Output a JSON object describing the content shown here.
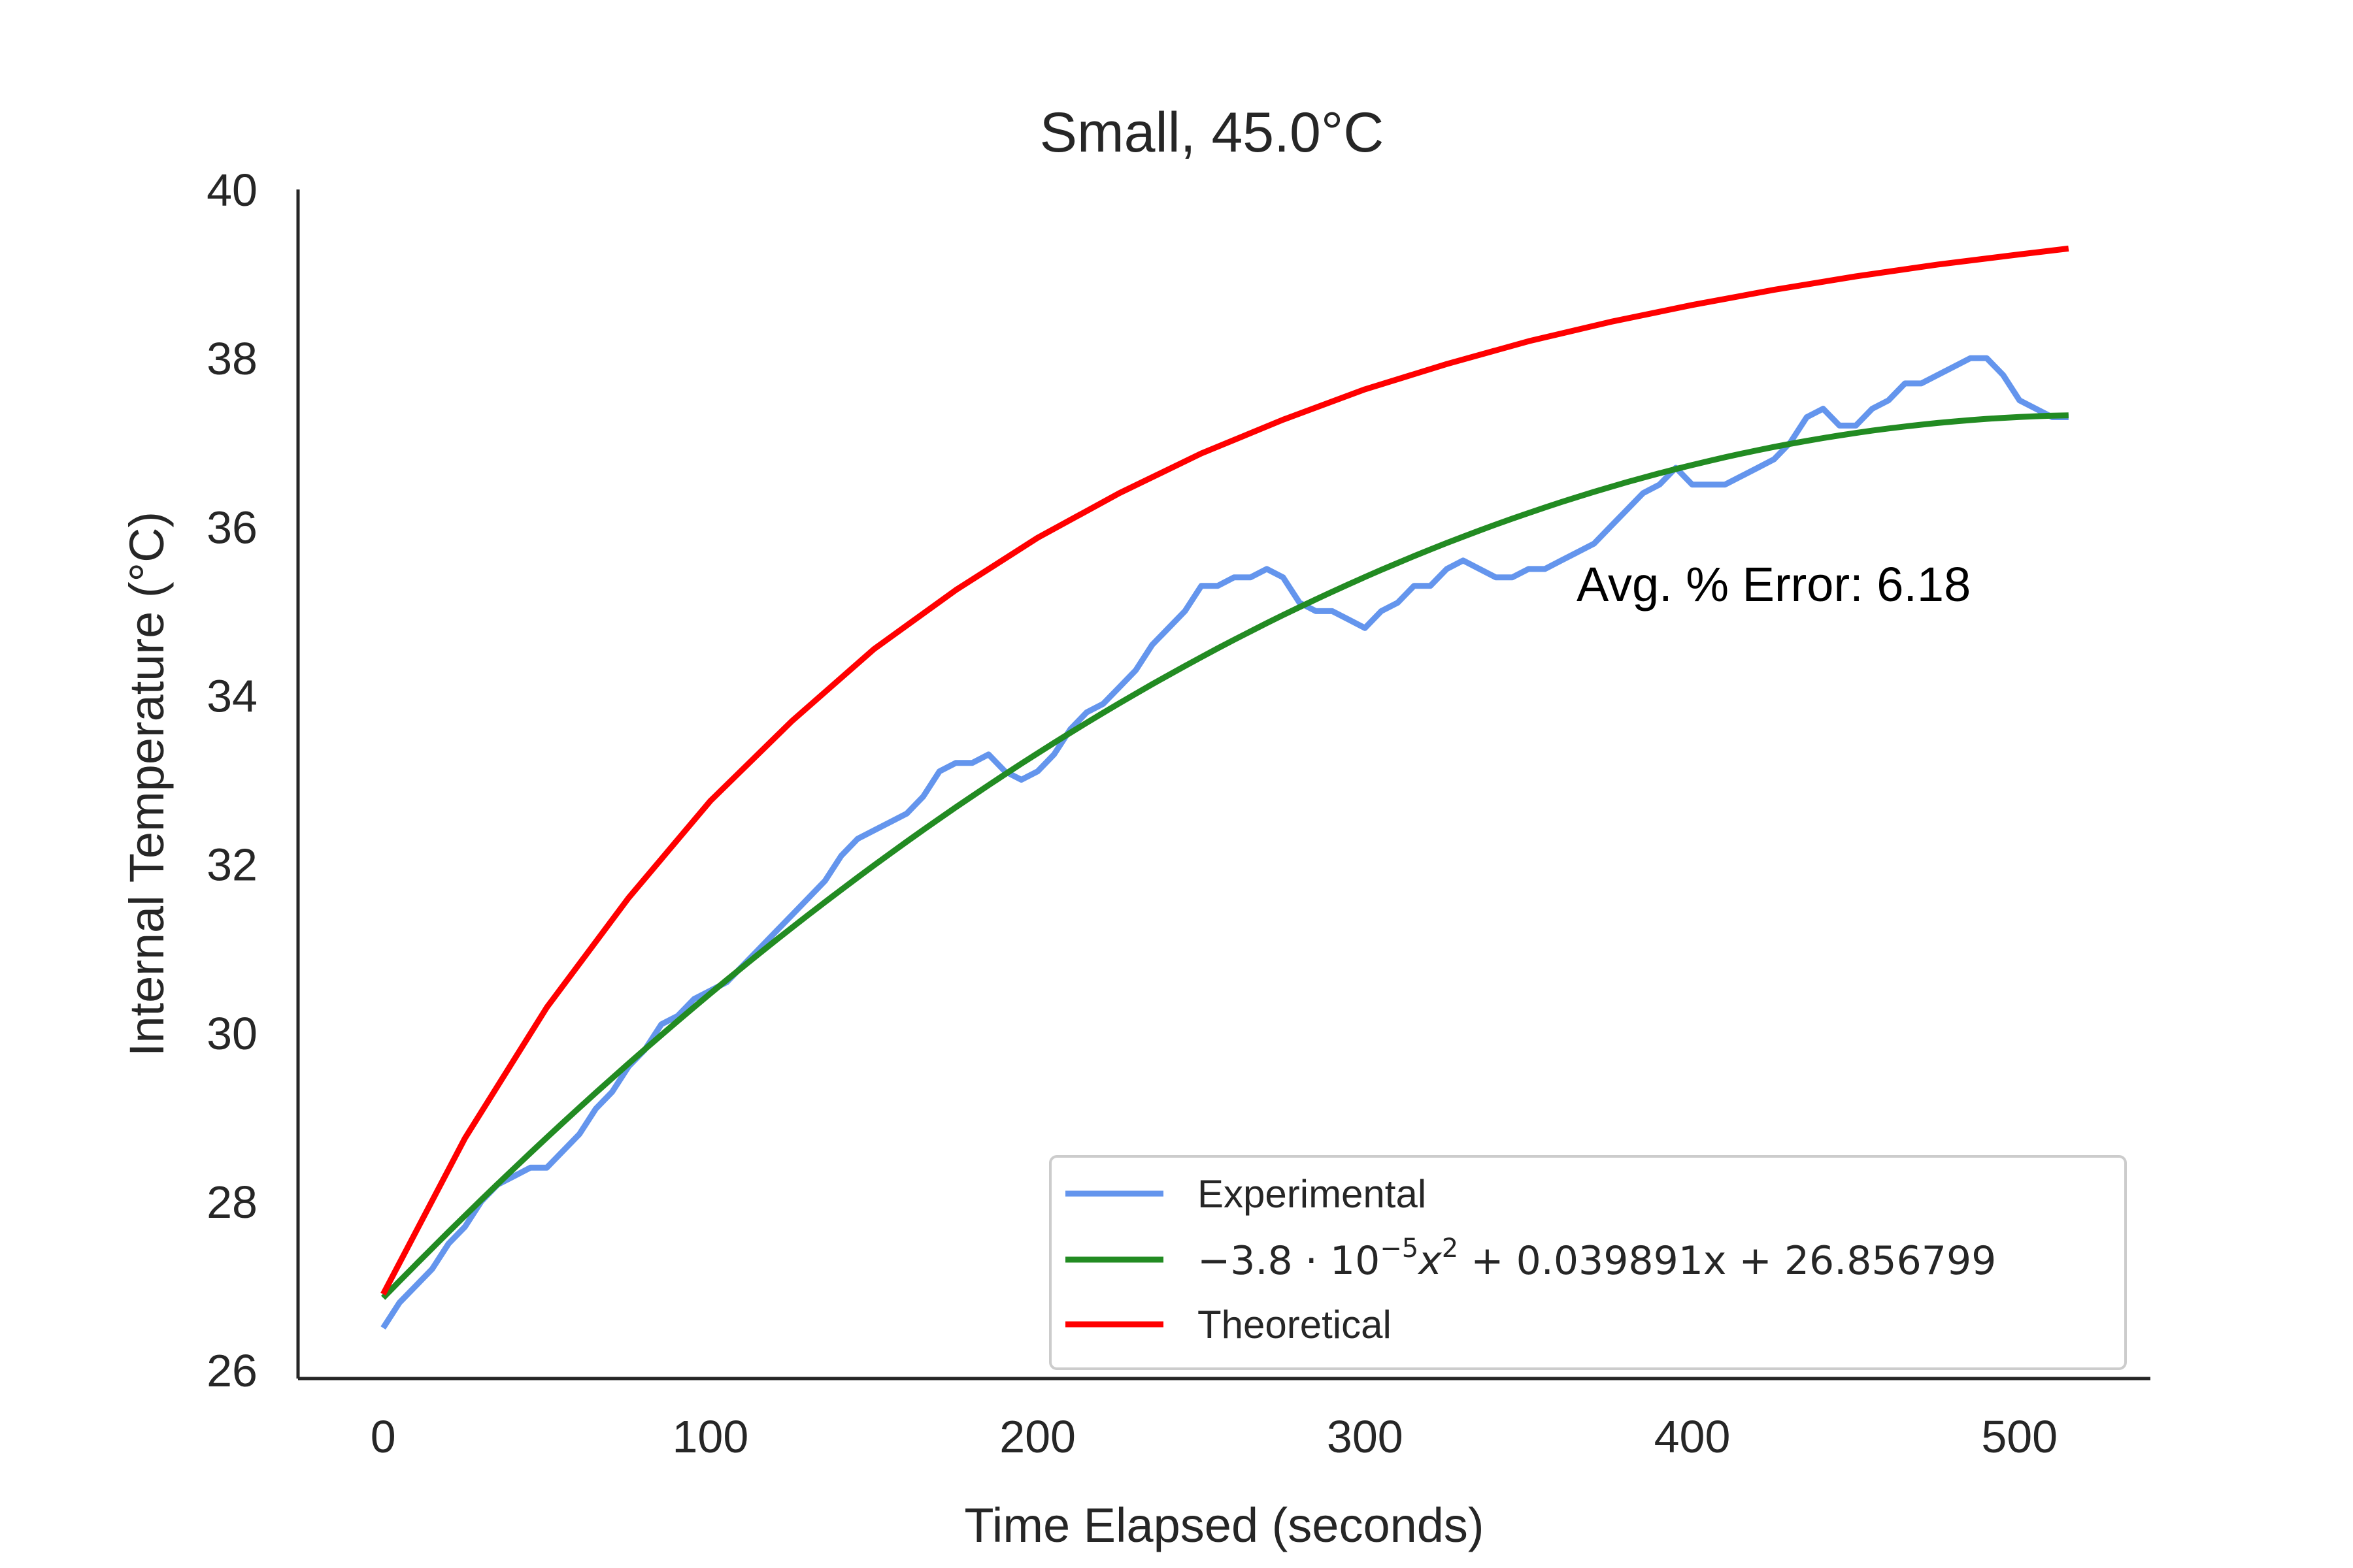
{
  "chart_data": {
    "type": "line",
    "title": "Small, 45.0°C",
    "xlabel": "Time Elapsed (seconds)",
    "ylabel": "Internal Temperature (°C)",
    "xlim": [
      -26,
      540
    ],
    "ylim": [
      25.9,
      40
    ],
    "xticks": [
      0,
      100,
      200,
      300,
      400,
      500
    ],
    "yticks": [
      26,
      28,
      30,
      32,
      34,
      36,
      38,
      40
    ],
    "grid": false,
    "legend_position": "lower-right",
    "annotation": "Avg. % Error: 6.18",
    "series": [
      {
        "name": "Experimental",
        "color": "#6495ed",
        "x": [
          0,
          5,
          10,
          15,
          20,
          25,
          30,
          35,
          40,
          45,
          50,
          55,
          60,
          65,
          70,
          75,
          80,
          85,
          90,
          95,
          100,
          105,
          110,
          115,
          120,
          125,
          130,
          135,
          140,
          145,
          150,
          155,
          160,
          165,
          170,
          175,
          180,
          185,
          190,
          195,
          200,
          205,
          210,
          215,
          220,
          225,
          230,
          235,
          240,
          245,
          250,
          255,
          260,
          265,
          270,
          275,
          280,
          285,
          290,
          295,
          300,
          305,
          310,
          315,
          320,
          325,
          330,
          335,
          340,
          345,
          350,
          355,
          360,
          365,
          370,
          375,
          380,
          385,
          390,
          395,
          400,
          405,
          410,
          415,
          420,
          425,
          430,
          435,
          440,
          445,
          450,
          455,
          460,
          465,
          470,
          475,
          480,
          485,
          490,
          495,
          500,
          505,
          510,
          515
        ],
        "y": [
          26.5,
          26.8,
          27.0,
          27.2,
          27.5,
          27.7,
          28.0,
          28.2,
          28.3,
          28.4,
          28.4,
          28.6,
          28.8,
          29.1,
          29.3,
          29.6,
          29.8,
          30.1,
          30.2,
          30.4,
          30.5,
          30.6,
          30.8,
          31.0,
          31.2,
          31.4,
          31.6,
          31.8,
          32.1,
          32.3,
          32.4,
          32.5,
          32.6,
          32.8,
          33.1,
          33.2,
          33.2,
          33.3,
          33.1,
          33.0,
          33.1,
          33.3,
          33.6,
          33.8,
          33.9,
          34.1,
          34.3,
          34.6,
          34.8,
          35.0,
          35.3,
          35.3,
          35.4,
          35.4,
          35.5,
          35.4,
          35.1,
          35.0,
          35.0,
          34.9,
          34.8,
          35.0,
          35.1,
          35.3,
          35.3,
          35.5,
          35.6,
          35.5,
          35.4,
          35.4,
          35.5,
          35.5,
          35.6,
          35.7,
          35.8,
          36.0,
          36.2,
          36.4,
          36.5,
          36.7,
          36.5,
          36.5,
          36.5,
          36.6,
          36.7,
          36.8,
          37.0,
          37.3,
          37.4,
          37.2,
          37.2,
          37.4,
          37.5,
          37.7,
          37.7,
          37.8,
          37.9,
          38.0,
          38.0,
          37.8,
          37.5,
          37.4,
          37.3,
          37.3
        ]
      },
      {
        "name": "−3.8·10⁻⁵x² + 0.039891x + 26.856799",
        "color": "#228b22",
        "coefficients": {
          "a": -3.8e-05,
          "b": 0.039891,
          "c": 26.856799
        },
        "x_range": [
          0,
          515
        ]
      },
      {
        "name": "Theoretical",
        "color": "#ff0000",
        "x": [
          0,
          25,
          50,
          75,
          100,
          125,
          150,
          175,
          200,
          225,
          250,
          275,
          300,
          325,
          350,
          375,
          400,
          425,
          450,
          475,
          500,
          515
        ],
        "y": [
          26.9,
          28.75,
          30.3,
          31.6,
          32.75,
          33.7,
          34.55,
          35.25,
          35.87,
          36.4,
          36.87,
          37.27,
          37.63,
          37.93,
          38.2,
          38.43,
          38.63,
          38.81,
          38.97,
          39.11,
          39.23,
          39.3
        ]
      }
    ]
  },
  "legend": {
    "experimental_label": "Experimental",
    "fit_label_parts": {
      "coef": "−3.8 · 10",
      "exp": "−5",
      "x2": "x",
      "x2_exp": "2",
      "rest": " + 0.039891x + 26.856799"
    },
    "theoretical_label": "Theoretical"
  }
}
